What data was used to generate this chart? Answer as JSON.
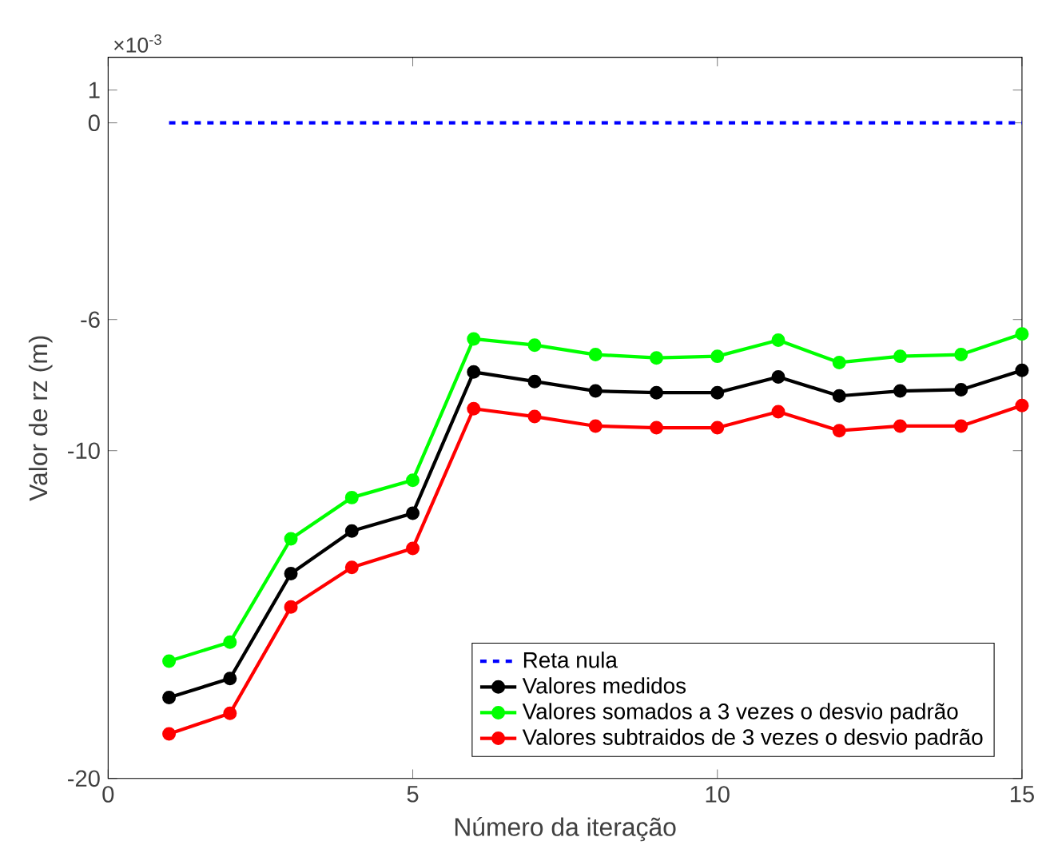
{
  "chart_data": {
    "type": "line",
    "xlabel": "Número da iteração",
    "ylabel": "Valor de rz (m)",
    "annotations": [
      "×10$^{-3}$"
    ],
    "xlim": [
      0,
      15
    ],
    "ylim": [
      -20,
      2
    ],
    "xticks": [
      0,
      5,
      10,
      15
    ],
    "yticks": [
      -20,
      -10,
      -6,
      0,
      1
    ],
    "legend": "bottom right",
    "grid": false,
    "series": [
      {
        "name": "Reta nula",
        "color": "#0000ff",
        "line_style": "dashed",
        "marker": "none",
        "x": [
          1,
          15
        ],
        "values": [
          0,
          0
        ]
      },
      {
        "name": "Valores medidos",
        "color": "#000000",
        "line_style": "solid",
        "marker": "circle",
        "x": [
          1,
          2,
          3,
          4,
          5,
          6,
          7,
          8,
          9,
          10,
          11,
          12,
          13,
          14,
          15
        ],
        "values": [
          -17.53,
          -16.95,
          -13.75,
          -12.45,
          -11.91,
          -7.6,
          -7.89,
          -8.18,
          -8.23,
          -8.23,
          -7.75,
          -8.33,
          -8.18,
          -8.14,
          -7.55
        ]
      },
      {
        "name": "Valores somados a 3 vezes o desvio padrão",
        "color": "#00ff00",
        "line_style": "solid",
        "marker": "circle",
        "x": [
          1,
          2,
          3,
          4,
          5,
          6,
          7,
          8,
          9,
          10,
          11,
          12,
          13,
          14,
          15
        ],
        "values": [
          -16.42,
          -15.84,
          -12.69,
          -11.43,
          -10.9,
          -6.59,
          -6.78,
          -7.07,
          -7.17,
          -7.12,
          -6.63,
          -7.31,
          -7.12,
          -7.07,
          -6.44
        ]
      },
      {
        "name": "Valores subtraidos de 3 vezes o desvio padrão",
        "color": "#ff0000",
        "line_style": "solid",
        "marker": "circle",
        "x": [
          1,
          2,
          3,
          4,
          5,
          6,
          7,
          8,
          9,
          10,
          11,
          12,
          13,
          14,
          15
        ],
        "values": [
          -18.64,
          -18.01,
          -14.77,
          -13.56,
          -12.98,
          -8.72,
          -8.96,
          -9.25,
          -9.3,
          -9.3,
          -8.81,
          -9.39,
          -9.25,
          -9.25,
          -8.62
        ]
      }
    ]
  }
}
